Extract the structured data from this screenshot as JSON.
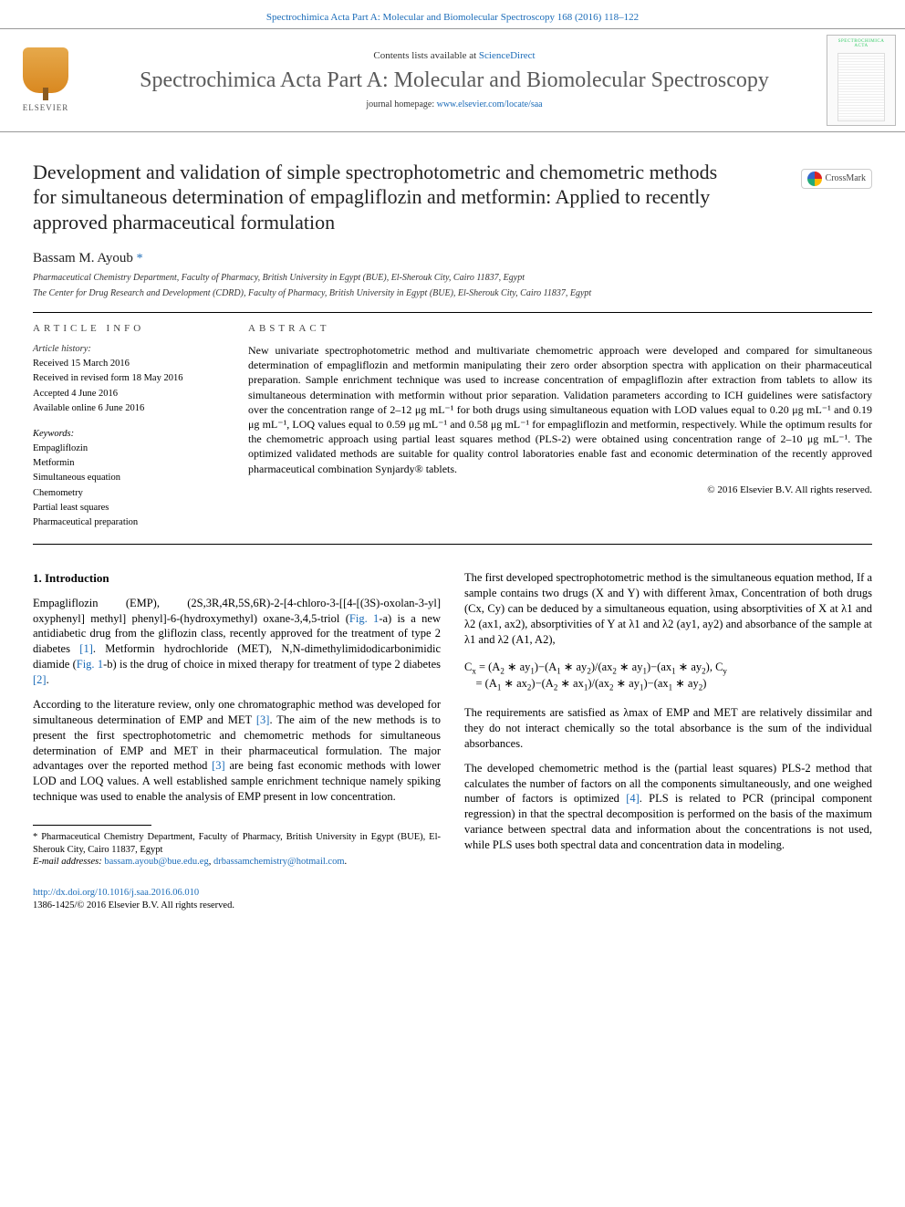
{
  "topLink": {
    "prefix": "",
    "journal": "Spectrochimica Acta Part A: Molecular and Biomolecular Spectroscopy 168 (2016) 118–122"
  },
  "masthead": {
    "contentsPrefix": "Contents lists available at ",
    "contentsLink": "ScienceDirect",
    "journalName": "Spectrochimica Acta Part A: Molecular and Biomolecular Spectroscopy",
    "homepagePrefix": "journal homepage: ",
    "homepageLink": "www.elsevier.com/locate/saa",
    "publisher": "ELSEVIER",
    "coverTitle": "SPECTROCHIMICA ACTA"
  },
  "crossmark": "CrossMark",
  "title": "Development and validation of simple spectrophotometric and chemometric methods for simultaneous determination of empagliflozin and metformin: Applied to recently approved pharmaceutical formulation",
  "author": {
    "name": "Bassam M. Ayoub ",
    "mark": "*"
  },
  "affiliations": [
    "Pharmaceutical Chemistry Department, Faculty of Pharmacy, British University in Egypt (BUE), El-Sherouk City, Cairo 11837, Egypt",
    "The Center for Drug Research and Development (CDRD), Faculty of Pharmacy, British University in Egypt (BUE), El-Sherouk City, Cairo 11837, Egypt"
  ],
  "articleInfo": {
    "label": "article info",
    "historyHead": "Article history:",
    "history": [
      "Received 15 March 2016",
      "Received in revised form 18 May 2016",
      "Accepted 4 June 2016",
      "Available online 6 June 2016"
    ],
    "keywordsHead": "Keywords:",
    "keywords": [
      "Empagliflozin",
      "Metformin",
      "Simultaneous equation",
      "Chemometry",
      "Partial least squares",
      "Pharmaceutical preparation"
    ]
  },
  "abstract": {
    "label": "abstract",
    "text": "New univariate spectrophotometric method and multivariate chemometric approach were developed and compared for simultaneous determination of empagliflozin and metformin manipulating their zero order absorption spectra with application on their pharmaceutical preparation. Sample enrichment technique was used to increase concentration of empagliflozin after extraction from tablets to allow its simultaneous determination with metformin without prior separation. Validation parameters according to ICH guidelines were satisfactory over the concentration range of 2–12 μg mL⁻¹ for both drugs using simultaneous equation with LOD values equal to 0.20 μg mL⁻¹ and 0.19 μg mL⁻¹, LOQ values equal to 0.59 μg mL⁻¹ and 0.58 μg mL⁻¹ for empagliflozin and metformin, respectively. While the optimum results for the chemometric approach using partial least squares method (PLS-2) were obtained using concentration range of 2–10 μg mL⁻¹. The optimized validated methods are suitable for quality control laboratories enable fast and economic determination of the recently approved pharmaceutical combination Synjardy® tablets.",
    "copyright": "© 2016 Elsevier B.V. All rights reserved."
  },
  "intro": {
    "heading": "1. Introduction",
    "p1a": "Empagliflozin (EMP), (2S,3R,4R,5S,6R)-2-[4-chloro-3-[[4-[(3S)-oxolan-3-yl] oxyphenyl] methyl] phenyl]-6-(hydroxymethyl) oxane-3,4,5-triol (",
    "p1link": "Fig. 1",
    "p1b": "-a) is a new antidiabetic drug from the gliflozin class, recently approved for the treatment of type 2 diabetes ",
    "p1ref": "[1]",
    "p1c": ". Metformin hydrochloride (MET), N,N-dimethylimidodicarbonimidic diamide (",
    "p1link2": "Fig. 1",
    "p1d": "-b) is the drug of choice in mixed therapy for treatment of type 2 diabetes ",
    "p1ref2": "[2]",
    "p1e": ".",
    "p2a": "According to the literature review, only one chromatographic method was developed for simultaneous determination of EMP and MET ",
    "p2ref": "[3]",
    "p2b": ". The aim of the new methods is to present the first spectrophotometric and chemometric methods for simultaneous determination of EMP and MET in their pharmaceutical formulation. The major advantages over the reported method ",
    "p2ref2": "[3]",
    "p2c": " are being fast economic methods with lower LOD and LOQ values. A well established sample enrichment technique namely spiking technique was used to enable the analysis of EMP present in low concentration."
  },
  "rightCol": {
    "p1": "The first developed spectrophotometric method is the simultaneous equation method, If a sample contains two drugs (X and Y) with different λmax, Concentration of both drugs (Cx, Cy) can be deduced by a simultaneous equation, using absorptivities of X at λ1 and λ2 (ax1, ax2), absorptivities of Y at λ1 and λ2 (ay1, ay2) and absorbance of the sample at λ1 and λ2 (A1, A2),",
    "eqn": "Cx = (A2 ∗ ay1)−(A1 ∗ ay2)/(ax2 ∗ ay1)−(ax1 ∗ ay2), Cy = (A1 ∗ ax2)−(A2 ∗ ax1)/(ax2 ∗ ay1)−(ax1 ∗ ay2)",
    "p2": "The requirements are satisfied as λmax of EMP and MET are relatively dissimilar and they do not interact chemically so the total absorbance is the sum of the individual absorbances.",
    "p3a": "The developed chemometric method is the (partial least squares) PLS-2 method that calculates the number of factors on all the components simultaneously, and one weighed number of factors is optimized ",
    "p3ref": "[4]",
    "p3b": ". PLS is related to PCR (principal component regression) in that the spectral decomposition is performed on the basis of the maximum variance between spectral data and information about the concentrations is not used, while PLS uses both spectral data and concentration data in modeling."
  },
  "footnote": {
    "star": "* Pharmaceutical Chemistry Department, Faculty of Pharmacy, British University in Egypt (BUE), El-Sherouk City, Cairo 11837, Egypt",
    "emailLabel": "E-mail addresses: ",
    "email1": "bassam.ayoub@bue.edu.eg",
    "emailSep": ", ",
    "email2": "drbassamchemistry@hotmail.com",
    "emailEnd": "."
  },
  "doi": {
    "link": "http://dx.doi.org/10.1016/j.saa.2016.06.010",
    "line2": "1386-1425/© 2016 Elsevier B.V. All rights reserved."
  },
  "colors": {
    "link": "#1a6bb8",
    "text": "#000000",
    "rule": "#000000",
    "bg": "#ffffff"
  }
}
